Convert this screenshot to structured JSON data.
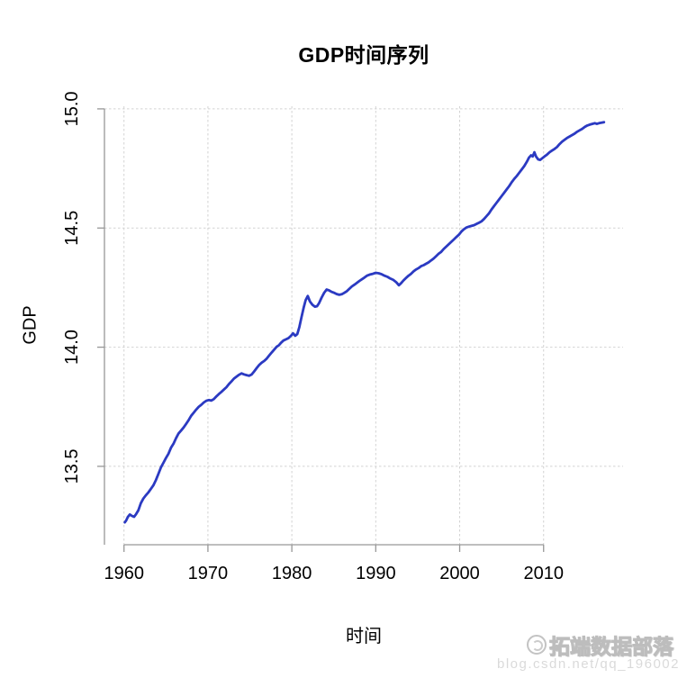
{
  "title": "GDP时间序列",
  "watermark": {
    "brand": "拓端数据部落",
    "url": "blog.csdn.net/qq_19600291"
  },
  "colors": {
    "line": "#2b3ac2",
    "grid": "#d2d2d2",
    "axis": "#979797",
    "tick_label": "#000000",
    "background": "#ffffff"
  },
  "chart_data": {
    "type": "line",
    "title": "GDP时间序列",
    "xlabel": "时间",
    "ylabel": "GDP",
    "xlim": [
      1957.67,
      2019.47
    ],
    "ylim": [
      13.171,
      15.011
    ],
    "x_ticks": [
      1960,
      1970,
      1980,
      1990,
      2000,
      2010
    ],
    "x_tick_labels": [
      "1960",
      "1970",
      "1980",
      "1990",
      "2000",
      "2010"
    ],
    "y_ticks": [
      13.5,
      14.0,
      14.5,
      15.0
    ],
    "y_tick_labels": [
      "13.5",
      "14.0",
      "14.5",
      "15.0"
    ],
    "grid": true,
    "grid_style": "dashed",
    "legend": "none",
    "series": [
      {
        "name": "GDP",
        "color": "#2b3ac2",
        "points": [
          [
            1960.1,
            13.265
          ],
          [
            1960.25,
            13.272
          ],
          [
            1960.45,
            13.287
          ],
          [
            1960.7,
            13.298
          ],
          [
            1960.95,
            13.292
          ],
          [
            1961.2,
            13.288
          ],
          [
            1961.45,
            13.3
          ],
          [
            1961.7,
            13.315
          ],
          [
            1962.0,
            13.345
          ],
          [
            1962.3,
            13.365
          ],
          [
            1962.6,
            13.378
          ],
          [
            1962.9,
            13.39
          ],
          [
            1963.2,
            13.405
          ],
          [
            1963.5,
            13.42
          ],
          [
            1963.8,
            13.442
          ],
          [
            1964.1,
            13.468
          ],
          [
            1964.4,
            13.495
          ],
          [
            1964.7,
            13.515
          ],
          [
            1965.0,
            13.535
          ],
          [
            1965.3,
            13.553
          ],
          [
            1965.6,
            13.578
          ],
          [
            1965.9,
            13.595
          ],
          [
            1966.2,
            13.618
          ],
          [
            1966.5,
            13.638
          ],
          [
            1966.8,
            13.65
          ],
          [
            1967.1,
            13.663
          ],
          [
            1967.4,
            13.678
          ],
          [
            1967.7,
            13.694
          ],
          [
            1968.0,
            13.712
          ],
          [
            1968.3,
            13.725
          ],
          [
            1968.6,
            13.738
          ],
          [
            1968.9,
            13.75
          ],
          [
            1969.2,
            13.758
          ],
          [
            1969.5,
            13.768
          ],
          [
            1969.8,
            13.775
          ],
          [
            1970.1,
            13.778
          ],
          [
            1970.4,
            13.776
          ],
          [
            1970.7,
            13.782
          ],
          [
            1971.0,
            13.793
          ],
          [
            1971.3,
            13.803
          ],
          [
            1971.6,
            13.812
          ],
          [
            1971.9,
            13.822
          ],
          [
            1972.2,
            13.832
          ],
          [
            1972.5,
            13.845
          ],
          [
            1972.8,
            13.856
          ],
          [
            1973.1,
            13.868
          ],
          [
            1973.4,
            13.876
          ],
          [
            1973.7,
            13.884
          ],
          [
            1974.0,
            13.89
          ],
          [
            1974.3,
            13.886
          ],
          [
            1974.6,
            13.883
          ],
          [
            1974.9,
            13.88
          ],
          [
            1975.2,
            13.885
          ],
          [
            1975.5,
            13.898
          ],
          [
            1975.8,
            13.912
          ],
          [
            1976.1,
            13.925
          ],
          [
            1976.4,
            13.935
          ],
          [
            1976.7,
            13.942
          ],
          [
            1977.0,
            13.952
          ],
          [
            1977.3,
            13.965
          ],
          [
            1977.6,
            13.978
          ],
          [
            1977.9,
            13.99
          ],
          [
            1978.2,
            14.002
          ],
          [
            1978.45,
            14.008
          ],
          [
            1978.7,
            14.018
          ],
          [
            1979.0,
            14.028
          ],
          [
            1979.3,
            14.033
          ],
          [
            1979.6,
            14.038
          ],
          [
            1979.9,
            14.048
          ],
          [
            1980.15,
            14.058
          ],
          [
            1980.4,
            14.048
          ],
          [
            1980.65,
            14.055
          ],
          [
            1980.9,
            14.085
          ],
          [
            1981.15,
            14.125
          ],
          [
            1981.4,
            14.165
          ],
          [
            1981.65,
            14.198
          ],
          [
            1981.9,
            14.215
          ],
          [
            1982.15,
            14.192
          ],
          [
            1982.45,
            14.178
          ],
          [
            1982.75,
            14.17
          ],
          [
            1983.0,
            14.172
          ],
          [
            1983.25,
            14.185
          ],
          [
            1983.55,
            14.208
          ],
          [
            1983.85,
            14.228
          ],
          [
            1984.15,
            14.242
          ],
          [
            1984.45,
            14.238
          ],
          [
            1984.75,
            14.232
          ],
          [
            1985.05,
            14.228
          ],
          [
            1985.35,
            14.223
          ],
          [
            1985.65,
            14.22
          ],
          [
            1985.95,
            14.222
          ],
          [
            1986.25,
            14.228
          ],
          [
            1986.55,
            14.235
          ],
          [
            1986.85,
            14.245
          ],
          [
            1987.15,
            14.255
          ],
          [
            1987.45,
            14.262
          ],
          [
            1987.75,
            14.27
          ],
          [
            1988.05,
            14.278
          ],
          [
            1988.35,
            14.285
          ],
          [
            1988.65,
            14.292
          ],
          [
            1988.95,
            14.3
          ],
          [
            1989.3,
            14.305
          ],
          [
            1989.65,
            14.308
          ],
          [
            1990.0,
            14.312
          ],
          [
            1990.35,
            14.31
          ],
          [
            1990.7,
            14.306
          ],
          [
            1991.05,
            14.3
          ],
          [
            1991.4,
            14.295
          ],
          [
            1991.75,
            14.288
          ],
          [
            1992.1,
            14.282
          ],
          [
            1992.45,
            14.272
          ],
          [
            1992.75,
            14.26
          ],
          [
            1993.0,
            14.268
          ],
          [
            1993.3,
            14.28
          ],
          [
            1993.6,
            14.29
          ],
          [
            1993.9,
            14.3
          ],
          [
            1994.2,
            14.308
          ],
          [
            1994.5,
            14.318
          ],
          [
            1994.8,
            14.326
          ],
          [
            1995.1,
            14.332
          ],
          [
            1995.4,
            14.34
          ],
          [
            1995.7,
            14.344
          ],
          [
            1996.0,
            14.35
          ],
          [
            1996.3,
            14.356
          ],
          [
            1996.6,
            14.364
          ],
          [
            1996.9,
            14.372
          ],
          [
            1997.2,
            14.382
          ],
          [
            1997.5,
            14.392
          ],
          [
            1997.8,
            14.4
          ],
          [
            1998.1,
            14.412
          ],
          [
            1998.4,
            14.422
          ],
          [
            1998.7,
            14.432
          ],
          [
            1999.0,
            14.442
          ],
          [
            1999.3,
            14.452
          ],
          [
            1999.6,
            14.462
          ],
          [
            1999.9,
            14.472
          ],
          [
            2000.2,
            14.485
          ],
          [
            2000.5,
            14.495
          ],
          [
            2000.8,
            14.502
          ],
          [
            2001.1,
            14.506
          ],
          [
            2001.4,
            14.509
          ],
          [
            2001.7,
            14.512
          ],
          [
            2002.0,
            14.517
          ],
          [
            2002.3,
            14.522
          ],
          [
            2002.6,
            14.528
          ],
          [
            2002.9,
            14.538
          ],
          [
            2003.2,
            14.55
          ],
          [
            2003.5,
            14.562
          ],
          [
            2003.8,
            14.578
          ],
          [
            2004.1,
            14.592
          ],
          [
            2004.4,
            14.606
          ],
          [
            2004.7,
            14.62
          ],
          [
            2005.0,
            14.634
          ],
          [
            2005.3,
            14.648
          ],
          [
            2005.6,
            14.662
          ],
          [
            2005.9,
            14.676
          ],
          [
            2006.2,
            14.692
          ],
          [
            2006.5,
            14.706
          ],
          [
            2006.8,
            14.718
          ],
          [
            2007.1,
            14.732
          ],
          [
            2007.4,
            14.746
          ],
          [
            2007.7,
            14.76
          ],
          [
            2008.0,
            14.778
          ],
          [
            2008.25,
            14.795
          ],
          [
            2008.5,
            14.805
          ],
          [
            2008.7,
            14.8
          ],
          [
            2008.9,
            14.818
          ],
          [
            2009.1,
            14.8
          ],
          [
            2009.35,
            14.788
          ],
          [
            2009.6,
            14.786
          ],
          [
            2009.85,
            14.793
          ],
          [
            2010.1,
            14.8
          ],
          [
            2010.4,
            14.808
          ],
          [
            2010.7,
            14.818
          ],
          [
            2011.0,
            14.825
          ],
          [
            2011.3,
            14.832
          ],
          [
            2011.6,
            14.84
          ],
          [
            2011.9,
            14.852
          ],
          [
            2012.2,
            14.862
          ],
          [
            2012.5,
            14.87
          ],
          [
            2012.8,
            14.878
          ],
          [
            2013.1,
            14.884
          ],
          [
            2013.4,
            14.89
          ],
          [
            2013.7,
            14.896
          ],
          [
            2014.0,
            14.904
          ],
          [
            2014.3,
            14.91
          ],
          [
            2014.6,
            14.916
          ],
          [
            2014.9,
            14.924
          ],
          [
            2015.2,
            14.93
          ],
          [
            2015.5,
            14.934
          ],
          [
            2015.8,
            14.937
          ],
          [
            2016.1,
            14.94
          ],
          [
            2016.35,
            14.937
          ],
          [
            2016.6,
            14.94
          ],
          [
            2016.9,
            14.942
          ],
          [
            2017.2,
            14.944
          ]
        ]
      }
    ]
  }
}
